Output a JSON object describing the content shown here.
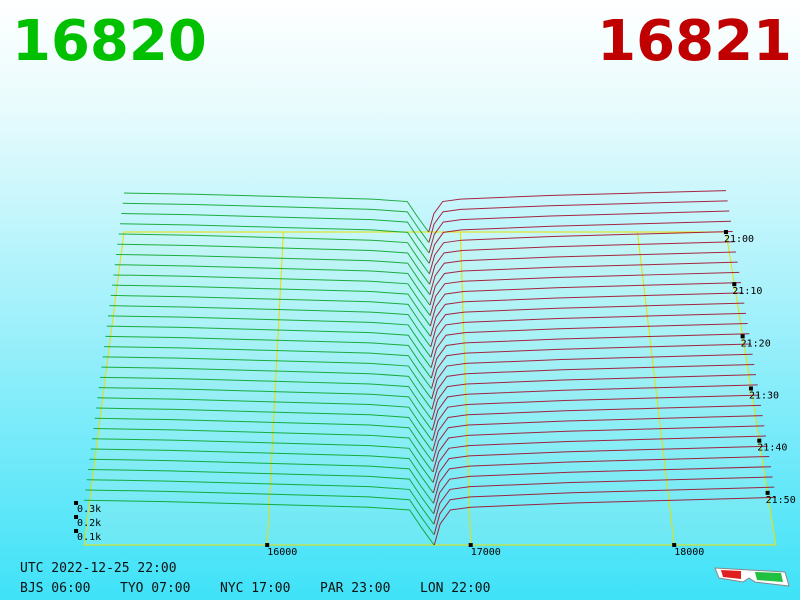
{
  "chart_data": {
    "type": "depth3d",
    "bid_price": "16820",
    "ask_price": "16821",
    "bid_color": "#00c000",
    "ask_color": "#c00000",
    "xlim": [
      15100,
      18500
    ],
    "xticks": [
      16000,
      17000,
      18000
    ],
    "zticks": [
      {
        "value": 100,
        "label": "0.1k"
      },
      {
        "value": 200,
        "label": "0.2k"
      },
      {
        "value": 300,
        "label": "0.3k"
      }
    ],
    "tlim": [
      "21:00",
      "22:00"
    ],
    "tticks": [
      "21:00",
      "21:10",
      "21:20",
      "21:30",
      "21:40",
      "21:50"
    ],
    "times": [
      "21:00",
      "21:02",
      "21:04",
      "21:06",
      "21:08",
      "21:10",
      "21:12",
      "21:14",
      "21:16",
      "21:18",
      "21:20",
      "21:22",
      "21:24",
      "21:26",
      "21:28",
      "21:30",
      "21:32",
      "21:34",
      "21:36",
      "21:38",
      "21:40",
      "21:42",
      "21:44",
      "21:46",
      "21:48",
      "21:50",
      "21:52",
      "21:54",
      "21:56",
      "21:58",
      "22:00"
    ],
    "series": [
      {
        "color": "#00a020",
        "x": [
          15100,
          15500,
          16000,
          16500,
          16700,
          16760,
          16800,
          16820
        ],
        "values": [
          320,
          310,
          290,
          270,
          250,
          120,
          40,
          0
        ]
      },
      {
        "color": "#a00020",
        "x": [
          16821,
          16850,
          16900,
          17000,
          17500,
          18000,
          18500
        ],
        "values": [
          0,
          150,
          250,
          270,
          300,
          320,
          340
        ]
      }
    ],
    "footer": "UTC 2022-12-25 22:00",
    "zones": [
      "BJS 06:00",
      "TYO 07:00",
      "NYC 17:00",
      "PAR 23:00",
      "LON 22:00"
    ]
  }
}
